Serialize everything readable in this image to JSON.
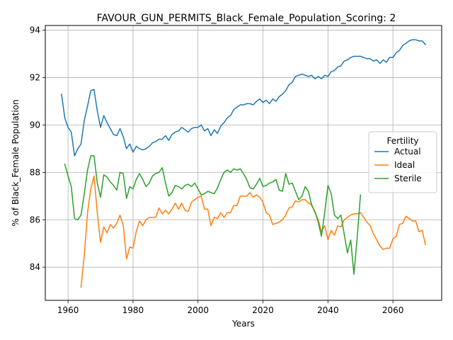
{
  "chart_data": {
    "type": "line",
    "title": "FAVOUR_GUN_PERMITS_Black_Female_Population_Scoring: 2",
    "xlabel": "Years",
    "ylabel": "% of Black_Female Population",
    "xlim": [
      1953,
      2075
    ],
    "ylim": [
      82.6,
      94.2
    ],
    "xticks": [
      1960,
      1980,
      2000,
      2020,
      2040,
      2060
    ],
    "yticks": [
      84,
      86,
      88,
      90,
      92,
      94
    ],
    "grid": true,
    "legend": {
      "title": "Fertility",
      "position": "center-right"
    },
    "series": [
      {
        "name": "Actual",
        "color": "#1f77b4",
        "x": [
          1958,
          1959,
          1960,
          1961,
          1962,
          1963,
          1964,
          1965,
          1966,
          1967,
          1968,
          1969,
          1970,
          1971,
          1972,
          1973,
          1974,
          1975,
          1976,
          1977,
          1978,
          1979,
          1980,
          1981,
          1982,
          1983,
          1984,
          1985,
          1986,
          1987,
          1988,
          1989,
          1990,
          1991,
          1992,
          1993,
          1994,
          1995,
          1996,
          1997,
          1998,
          1999,
          2000,
          2001,
          2002,
          2003,
          2004,
          2005,
          2006,
          2007,
          2008,
          2009,
          2010,
          2011,
          2012,
          2013,
          2014,
          2015,
          2016,
          2017,
          2018,
          2019,
          2020,
          2021,
          2022,
          2023,
          2024,
          2025,
          2026,
          2027,
          2028,
          2029,
          2030,
          2031,
          2032,
          2033,
          2034,
          2035,
          2036,
          2037,
          2038,
          2039,
          2040,
          2041,
          2042,
          2043,
          2044,
          2045,
          2046,
          2047,
          2048,
          2049,
          2050,
          2051,
          2052,
          2053,
          2054,
          2055,
          2056,
          2057,
          2058,
          2059,
          2060,
          2061,
          2062,
          2063,
          2064,
          2065,
          2066,
          2067,
          2068,
          2069,
          2070
        ],
        "y": [
          91.3,
          90.3,
          89.9,
          89.7,
          88.7,
          89.0,
          89.2,
          90.2,
          90.8,
          91.45,
          91.5,
          90.6,
          89.9,
          90.4,
          90.1,
          89.85,
          89.6,
          89.55,
          89.85,
          89.5,
          89.0,
          89.2,
          88.85,
          89.1,
          89.0,
          88.95,
          89.0,
          89.1,
          89.25,
          89.3,
          89.4,
          89.4,
          89.55,
          89.35,
          89.6,
          89.7,
          89.75,
          89.9,
          89.8,
          89.7,
          89.85,
          89.9,
          89.9,
          90.0,
          89.75,
          89.85,
          89.55,
          89.8,
          89.65,
          89.95,
          90.1,
          90.3,
          90.4,
          90.65,
          90.75,
          90.85,
          90.85,
          90.9,
          90.9,
          90.85,
          91.0,
          91.1,
          90.95,
          91.05,
          90.9,
          91.1,
          91.0,
          91.2,
          91.3,
          91.45,
          91.7,
          91.8,
          92.05,
          92.1,
          92.15,
          92.1,
          92.05,
          92.1,
          91.95,
          92.05,
          91.95,
          92.1,
          92.05,
          92.25,
          92.3,
          92.45,
          92.5,
          92.7,
          92.75,
          92.85,
          92.9,
          92.9,
          92.9,
          92.85,
          92.8,
          92.8,
          92.7,
          92.75,
          92.6,
          92.75,
          92.65,
          92.85,
          92.85,
          93.05,
          93.15,
          93.35,
          93.45,
          93.55,
          93.6,
          93.6,
          93.55,
          93.55,
          93.4
        ]
      },
      {
        "name": "Ideal",
        "color": "#ff7f0e",
        "x": [
          1964,
          1965,
          1966,
          1967,
          1968,
          1969,
          1970,
          1971,
          1972,
          1973,
          1974,
          1975,
          1976,
          1977,
          1978,
          1979,
          1980,
          1981,
          1982,
          1983,
          1984,
          1985,
          1986,
          1987,
          1988,
          1989,
          1990,
          1991,
          1992,
          1993,
          1994,
          1995,
          1996,
          1997,
          1998,
          1999,
          2000,
          2001,
          2002,
          2003,
          2004,
          2005,
          2006,
          2007,
          2008,
          2009,
          2010,
          2011,
          2012,
          2013,
          2014,
          2015,
          2016,
          2017,
          2018,
          2019,
          2020,
          2021,
          2022,
          2023,
          2024,
          2025,
          2026,
          2027,
          2028,
          2029,
          2030,
          2031,
          2032,
          2033,
          2034,
          2035,
          2036,
          2037,
          2038,
          2039,
          2040,
          2041,
          2042,
          2043,
          2044,
          2045,
          2046,
          2047,
          2048,
          2049,
          2050,
          2051,
          2052,
          2053,
          2054,
          2055,
          2056,
          2057,
          2058,
          2059,
          2060,
          2061,
          2062,
          2063,
          2064,
          2065,
          2066,
          2067,
          2068,
          2069,
          2070
        ],
        "y": [
          83.15,
          84.5,
          86.3,
          87.3,
          87.85,
          86.3,
          85.05,
          85.7,
          85.45,
          85.8,
          85.65,
          85.85,
          86.2,
          85.75,
          84.35,
          84.85,
          84.8,
          85.5,
          85.95,
          85.75,
          86.0,
          86.1,
          86.1,
          86.1,
          86.5,
          86.25,
          86.4,
          86.25,
          86.45,
          86.7,
          86.45,
          86.7,
          86.4,
          86.35,
          86.75,
          86.85,
          86.95,
          87.0,
          86.45,
          86.45,
          85.75,
          86.1,
          86.05,
          86.3,
          86.1,
          86.3,
          86.3,
          86.6,
          86.6,
          87.0,
          87.0,
          87.0,
          87.15,
          86.95,
          87.05,
          86.95,
          86.75,
          86.3,
          86.2,
          85.8,
          85.85,
          85.9,
          86.0,
          86.2,
          86.5,
          86.55,
          86.8,
          86.75,
          86.85,
          86.85,
          86.7,
          86.65,
          86.3,
          86.0,
          85.5,
          85.75,
          85.15,
          85.55,
          85.35,
          85.75,
          85.7,
          86.0,
          86.1,
          86.2,
          86.25,
          86.25,
          86.3,
          86.1,
          85.9,
          85.75,
          85.4,
          85.15,
          84.9,
          84.75,
          84.8,
          84.8,
          85.2,
          85.3,
          85.8,
          85.85,
          86.15,
          86.05,
          85.95,
          85.95,
          85.5,
          85.55,
          84.95
        ]
      },
      {
        "name": "Sterile",
        "color": "#2ca02c",
        "x": [
          1959,
          1960,
          1961,
          1962,
          1963,
          1964,
          1965,
          1966,
          1967,
          1968,
          1969,
          1970,
          1971,
          1972,
          1973,
          1974,
          1975,
          1976,
          1977,
          1978,
          1979,
          1980,
          1981,
          1982,
          1983,
          1984,
          1985,
          1986,
          1987,
          1988,
          1989,
          1990,
          1991,
          1992,
          1993,
          1994,
          1995,
          1996,
          1997,
          1998,
          1999,
          2000,
          2001,
          2002,
          2003,
          2004,
          2005,
          2006,
          2007,
          2008,
          2009,
          2010,
          2011,
          2012,
          2013,
          2014,
          2015,
          2016,
          2017,
          2018,
          2019,
          2020,
          2021,
          2022,
          2023,
          2024,
          2025,
          2026,
          2027,
          2028,
          2029,
          2030,
          2031,
          2032,
          2033,
          2034,
          2035,
          2036,
          2037,
          2038,
          2039,
          2040,
          2041,
          2042,
          2043,
          2044,
          2045,
          2046,
          2047,
          2048,
          2049,
          2050
        ],
        "y": [
          88.35,
          87.85,
          87.4,
          86.05,
          86.0,
          86.2,
          87.1,
          88.1,
          88.7,
          88.7,
          87.55,
          86.95,
          87.9,
          87.8,
          87.6,
          87.45,
          87.25,
          88.0,
          87.95,
          86.9,
          87.4,
          87.3,
          87.7,
          87.95,
          87.7,
          87.4,
          87.55,
          87.85,
          87.95,
          88.0,
          88.2,
          87.55,
          87.0,
          87.15,
          87.45,
          87.4,
          87.3,
          87.45,
          87.5,
          87.4,
          87.55,
          87.3,
          87.05,
          87.1,
          87.2,
          87.15,
          87.1,
          87.35,
          87.7,
          88.0,
          88.1,
          88.0,
          88.15,
          88.1,
          88.15,
          87.95,
          87.7,
          87.35,
          87.3,
          87.5,
          87.75,
          87.4,
          87.45,
          87.55,
          87.6,
          87.7,
          87.25,
          87.2,
          87.95,
          87.5,
          87.55,
          87.2,
          86.85,
          87.0,
          87.4,
          87.2,
          86.6,
          86.35,
          85.9,
          85.3,
          86.3,
          87.45,
          87.1,
          86.2,
          86.05,
          86.2,
          85.4,
          84.6,
          85.15,
          83.7,
          85.25,
          87.05
        ]
      }
    ]
  }
}
